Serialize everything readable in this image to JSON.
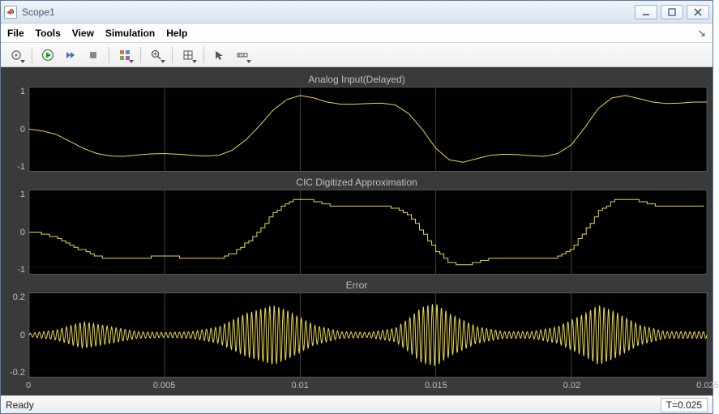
{
  "window": {
    "title": "Scope1"
  },
  "menu": {
    "file": "File",
    "tools": "Tools",
    "view": "View",
    "simulation": "Simulation",
    "help": "Help"
  },
  "status": {
    "ready": "Ready",
    "time": "T=0.025"
  },
  "x": {
    "min": 0,
    "max": 0.025,
    "gridlines": [
      0,
      0.005,
      0.01,
      0.015,
      0.02,
      0.025
    ],
    "ticklabels": [
      "0",
      "0.005",
      "0.01",
      "0.015",
      "0.02",
      "0.025"
    ]
  },
  "panels": [
    {
      "title": "Analog Input(Delayed)",
      "ylim": [
        -1.2,
        1.2
      ],
      "yticks": [
        -1,
        0,
        1
      ],
      "yticklabels": [
        "-1",
        "0",
        "1"
      ],
      "trace_color": "#e8d84a",
      "series_type": "smooth",
      "data": [
        [
          0,
          0
        ],
        [
          0.0005,
          -0.05
        ],
        [
          0.001,
          -0.15
        ],
        [
          0.0015,
          -0.35
        ],
        [
          0.002,
          -0.55
        ],
        [
          0.0025,
          -0.7
        ],
        [
          0.003,
          -0.77
        ],
        [
          0.0035,
          -0.78
        ],
        [
          0.004,
          -0.74
        ],
        [
          0.0045,
          -0.71
        ],
        [
          0.005,
          -0.7
        ],
        [
          0.0055,
          -0.72
        ],
        [
          0.006,
          -0.75
        ],
        [
          0.0065,
          -0.77
        ],
        [
          0.007,
          -0.75
        ],
        [
          0.0075,
          -0.6
        ],
        [
          0.008,
          -0.3
        ],
        [
          0.0085,
          0.1
        ],
        [
          0.009,
          0.55
        ],
        [
          0.0095,
          0.85
        ],
        [
          0.01,
          0.97
        ],
        [
          0.0105,
          0.9
        ],
        [
          0.011,
          0.78
        ],
        [
          0.0115,
          0.72
        ],
        [
          0.012,
          0.72
        ],
        [
          0.0125,
          0.74
        ],
        [
          0.013,
          0.75
        ],
        [
          0.0135,
          0.7
        ],
        [
          0.014,
          0.45
        ],
        [
          0.0145,
          0.0
        ],
        [
          0.015,
          -0.55
        ],
        [
          0.0155,
          -0.88
        ],
        [
          0.016,
          -0.95
        ],
        [
          0.0165,
          -0.85
        ],
        [
          0.017,
          -0.75
        ],
        [
          0.0175,
          -0.72
        ],
        [
          0.018,
          -0.73
        ],
        [
          0.0185,
          -0.76
        ],
        [
          0.019,
          -0.78
        ],
        [
          0.0195,
          -0.7
        ],
        [
          0.02,
          -0.45
        ],
        [
          0.0205,
          0.05
        ],
        [
          0.021,
          0.6
        ],
        [
          0.0215,
          0.9
        ],
        [
          0.022,
          0.97
        ],
        [
          0.0225,
          0.88
        ],
        [
          0.023,
          0.78
        ],
        [
          0.0235,
          0.74
        ],
        [
          0.024,
          0.75
        ],
        [
          0.0245,
          0.78
        ],
        [
          0.025,
          0.78
        ]
      ]
    },
    {
      "title": "CIC Digitized Approximation",
      "ylim": [
        -1.2,
        1.2
      ],
      "yticks": [
        -1,
        0,
        1
      ],
      "yticklabels": [
        "-1",
        "0",
        "1"
      ],
      "trace_color": "#e8d84a",
      "series_type": "step",
      "step_dx": 0.00015,
      "data": [
        [
          0,
          0
        ],
        [
          0.0005,
          -0.05
        ],
        [
          0.001,
          -0.15
        ],
        [
          0.0015,
          -0.35
        ],
        [
          0.002,
          -0.55
        ],
        [
          0.0025,
          -0.7
        ],
        [
          0.003,
          -0.77
        ],
        [
          0.0035,
          -0.78
        ],
        [
          0.004,
          -0.74
        ],
        [
          0.0045,
          -0.71
        ],
        [
          0.005,
          -0.7
        ],
        [
          0.0055,
          -0.72
        ],
        [
          0.006,
          -0.75
        ],
        [
          0.0065,
          -0.77
        ],
        [
          0.007,
          -0.75
        ],
        [
          0.0075,
          -0.6
        ],
        [
          0.008,
          -0.3
        ],
        [
          0.0085,
          0.1
        ],
        [
          0.009,
          0.55
        ],
        [
          0.0095,
          0.85
        ],
        [
          0.01,
          0.97
        ],
        [
          0.0105,
          0.9
        ],
        [
          0.011,
          0.78
        ],
        [
          0.0115,
          0.72
        ],
        [
          0.012,
          0.72
        ],
        [
          0.0125,
          0.74
        ],
        [
          0.013,
          0.75
        ],
        [
          0.0135,
          0.7
        ],
        [
          0.014,
          0.45
        ],
        [
          0.0145,
          0.0
        ],
        [
          0.015,
          -0.55
        ],
        [
          0.0155,
          -0.88
        ],
        [
          0.016,
          -0.95
        ],
        [
          0.0165,
          -0.85
        ],
        [
          0.017,
          -0.75
        ],
        [
          0.0175,
          -0.72
        ],
        [
          0.018,
          -0.73
        ],
        [
          0.0185,
          -0.76
        ],
        [
          0.019,
          -0.78
        ],
        [
          0.0195,
          -0.7
        ],
        [
          0.02,
          -0.45
        ],
        [
          0.0205,
          0.05
        ],
        [
          0.021,
          0.6
        ],
        [
          0.0215,
          0.9
        ],
        [
          0.022,
          0.97
        ],
        [
          0.0225,
          0.88
        ],
        [
          0.023,
          0.78
        ],
        [
          0.0235,
          0.74
        ],
        [
          0.024,
          0.75
        ],
        [
          0.0245,
          0.78
        ],
        [
          0.025,
          0.78
        ]
      ]
    },
    {
      "title": "Error",
      "ylim": [
        -0.25,
        0.25
      ],
      "yticks": [
        -0.2,
        0,
        0.2
      ],
      "yticklabels": [
        "-0.2",
        "0",
        "0.2"
      ],
      "trace_color": "#e8d84a",
      "series_type": "oscillation",
      "osc_freq": 6000,
      "envelope": [
        [
          0,
          0.01
        ],
        [
          0.001,
          0.03
        ],
        [
          0.002,
          0.08
        ],
        [
          0.003,
          0.05
        ],
        [
          0.004,
          0.02
        ],
        [
          0.005,
          0.015
        ],
        [
          0.006,
          0.02
        ],
        [
          0.007,
          0.05
        ],
        [
          0.008,
          0.13
        ],
        [
          0.009,
          0.18
        ],
        [
          0.0095,
          0.15
        ],
        [
          0.0105,
          0.06
        ],
        [
          0.0115,
          0.02
        ],
        [
          0.0125,
          0.015
        ],
        [
          0.0135,
          0.04
        ],
        [
          0.014,
          0.1
        ],
        [
          0.0145,
          0.17
        ],
        [
          0.015,
          0.19
        ],
        [
          0.0155,
          0.13
        ],
        [
          0.0165,
          0.05
        ],
        [
          0.0175,
          0.02
        ],
        [
          0.0185,
          0.02
        ],
        [
          0.0195,
          0.05
        ],
        [
          0.0205,
          0.13
        ],
        [
          0.021,
          0.18
        ],
        [
          0.0215,
          0.15
        ],
        [
          0.0225,
          0.06
        ],
        [
          0.0235,
          0.02
        ],
        [
          0.0245,
          0.02
        ],
        [
          0.025,
          0.02
        ]
      ]
    }
  ],
  "colors": {
    "plot_bg": "#000000",
    "panel_bg": "#3a3a3a",
    "grid": "#4a4a4a",
    "axis_text": "#bfbfbf",
    "trace": "#e8d84a"
  }
}
